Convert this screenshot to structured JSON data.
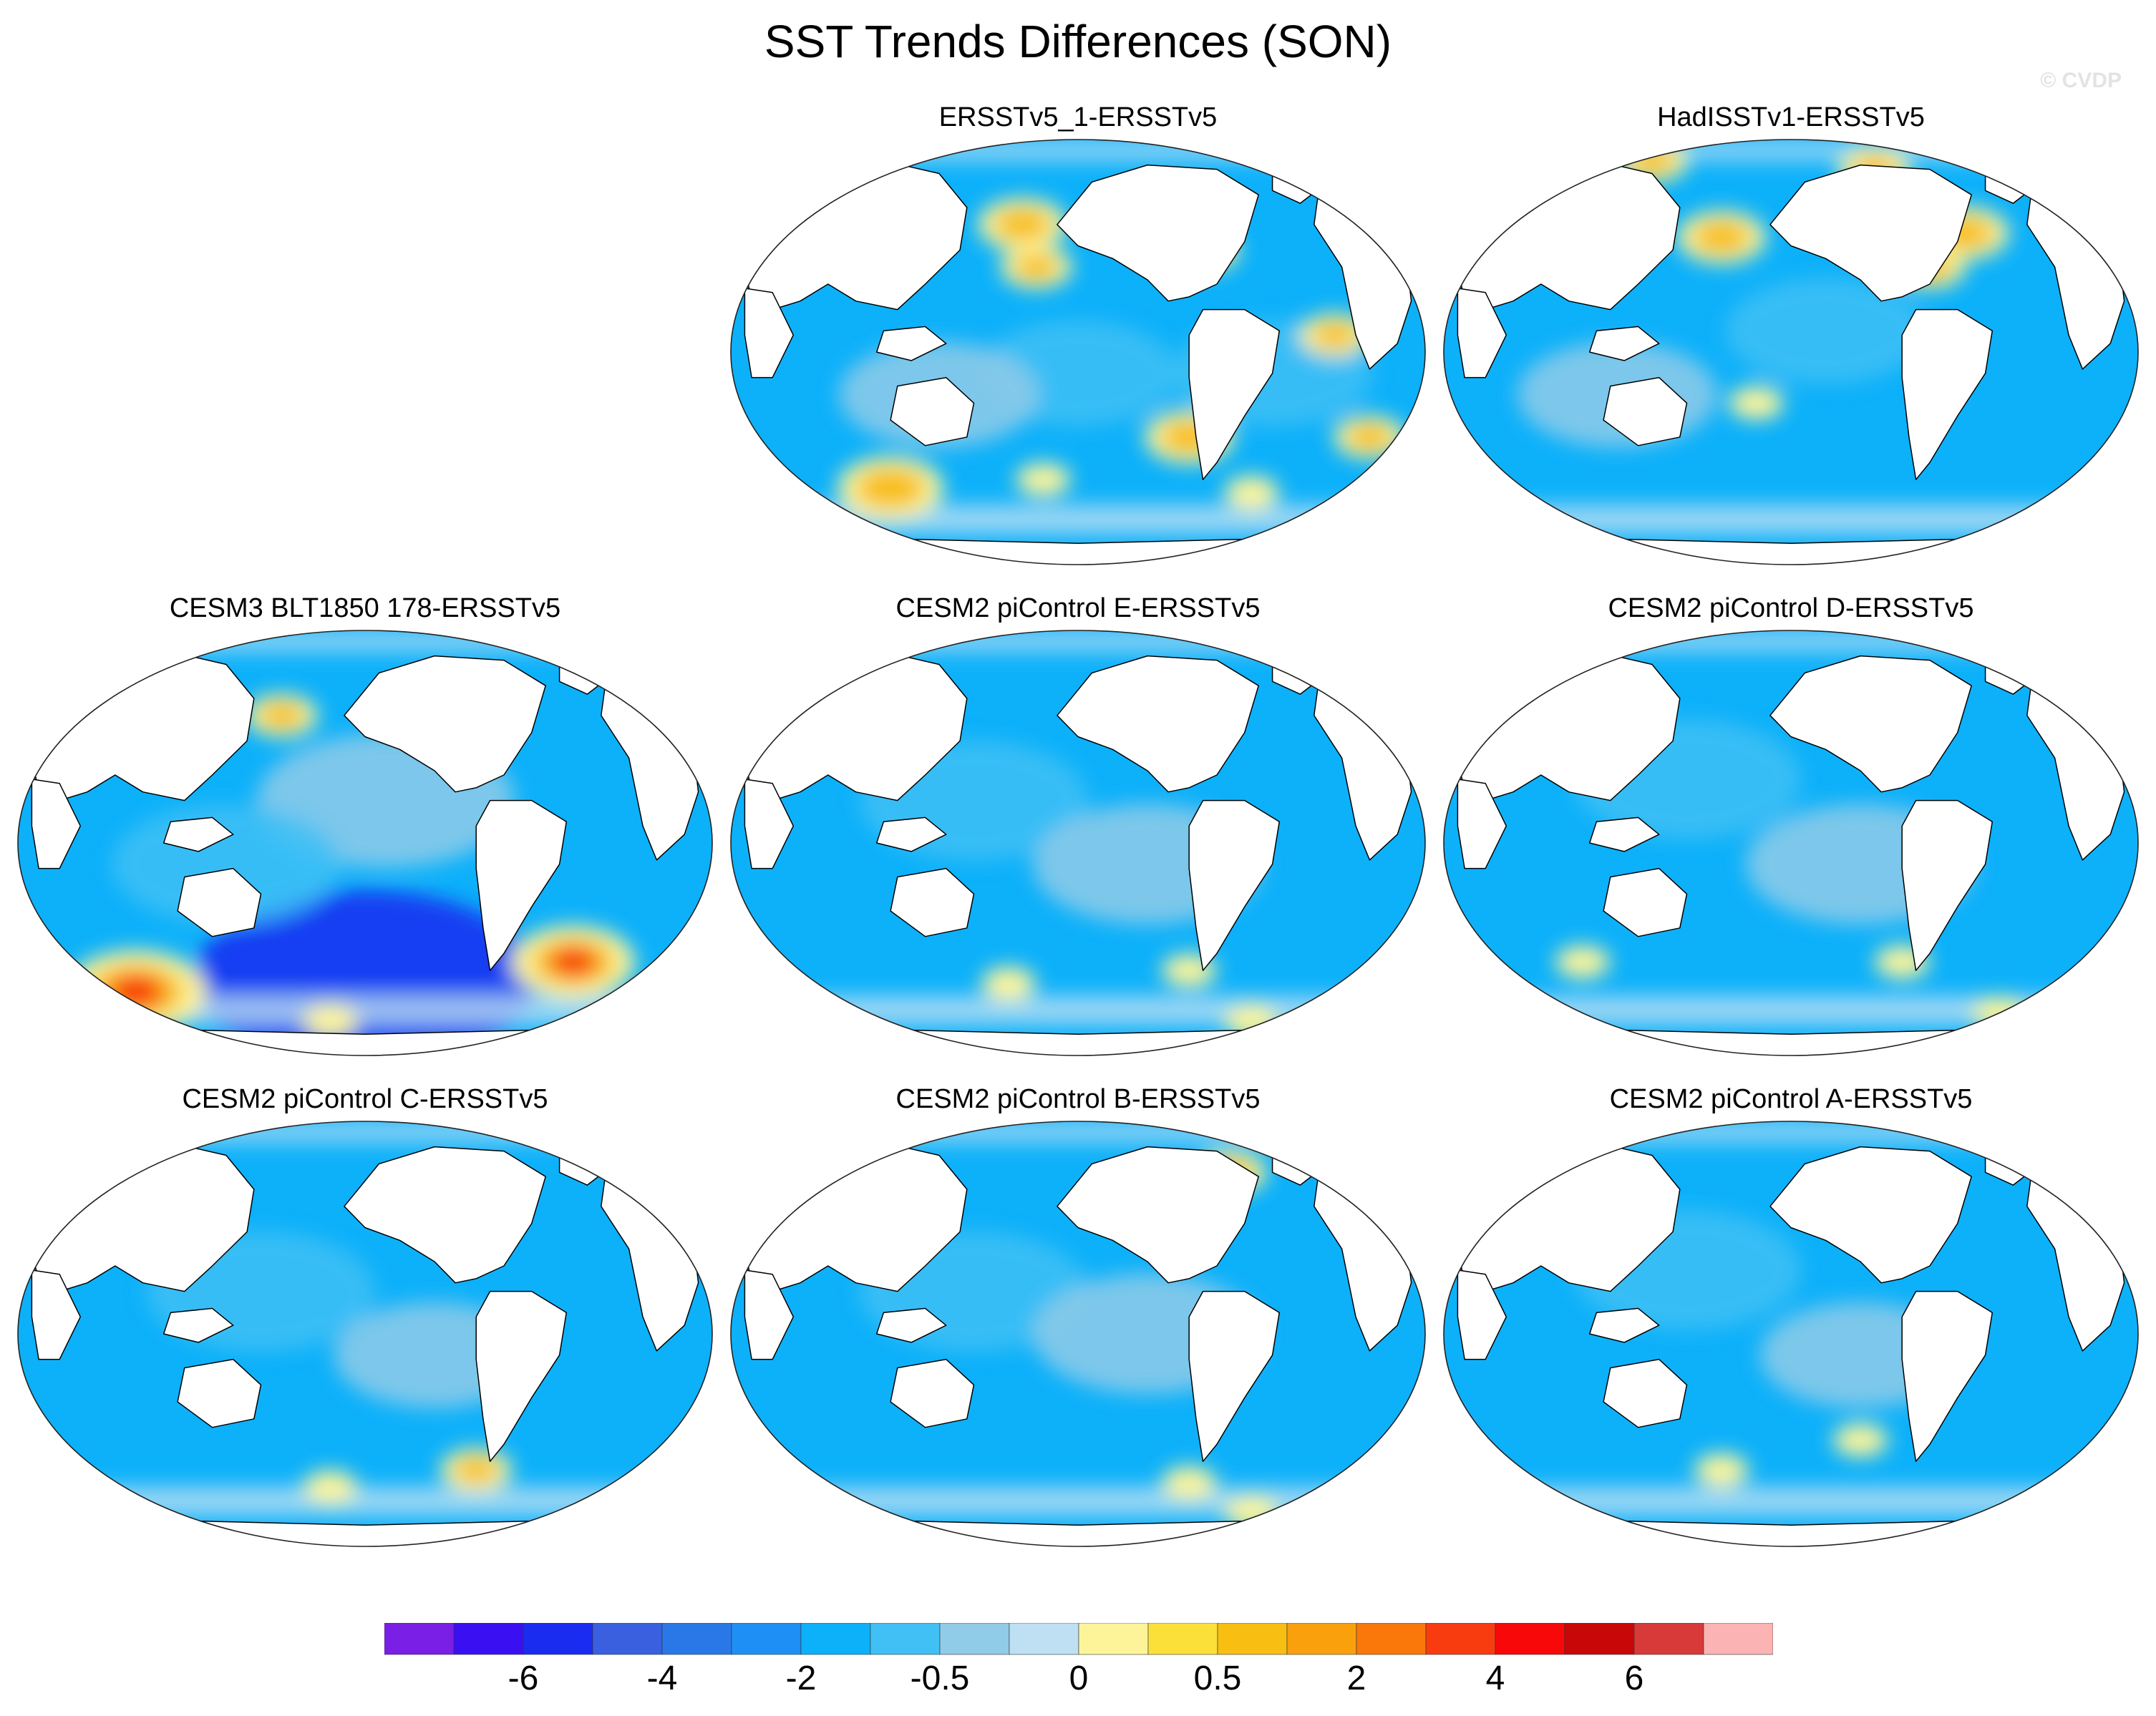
{
  "title": "SST Trends Differences (SON)",
  "watermark": "© CVDP",
  "panels": [
    {
      "title": "ERSSTv5_1-ERSSTv5",
      "warm": [
        [
          0.42,
          0.2,
          3
        ],
        [
          0.44,
          0.3,
          2
        ],
        [
          0.23,
          0.82,
          4
        ],
        [
          0.66,
          0.7,
          3
        ],
        [
          0.75,
          0.83,
          1
        ],
        [
          0.92,
          0.7,
          2
        ],
        [
          0.87,
          0.46,
          2
        ],
        [
          0.68,
          0.26,
          2
        ],
        [
          0.45,
          0.8,
          1
        ]
      ],
      "cool": [
        [
          0.5,
          0.55,
          6
        ],
        [
          0.3,
          0.6,
          6
        ],
        [
          0.78,
          0.55,
          6
        ]
      ]
    },
    {
      "title": "HadISSTv1-ERSSTv5",
      "warm": [
        [
          0.4,
          0.23,
          3
        ],
        [
          0.62,
          0.07,
          2
        ],
        [
          0.7,
          0.3,
          2
        ],
        [
          0.45,
          0.62,
          1
        ],
        [
          0.75,
          0.22,
          3
        ],
        [
          0.3,
          0.05,
          2
        ]
      ],
      "cool": [
        [
          0.55,
          0.45,
          6
        ],
        [
          0.25,
          0.6,
          6
        ]
      ]
    },
    {
      "title": "CESM3 BLT1850 178-ERSSTv5",
      "warm": [
        [
          0.8,
          0.78,
          5
        ],
        [
          0.17,
          0.85,
          6
        ],
        [
          0.38,
          0.2,
          2
        ],
        [
          0.45,
          0.92,
          1
        ]
      ],
      "cool": [
        [
          0.5,
          0.82,
          11
        ],
        [
          0.53,
          0.4,
          8
        ],
        [
          0.3,
          0.55,
          7
        ]
      ]
    },
    {
      "title": "CESM2 piControl E-ERSSTv5",
      "warm": [
        [
          0.4,
          0.83,
          1
        ],
        [
          0.66,
          0.8,
          1
        ],
        [
          0.75,
          0.92,
          1
        ]
      ],
      "cool": [
        [
          0.35,
          0.4,
          7
        ],
        [
          0.6,
          0.55,
          7
        ]
      ]
    },
    {
      "title": "CESM2 piControl D-ERSSTv5",
      "warm": [
        [
          0.2,
          0.78,
          1
        ],
        [
          0.66,
          0.78,
          1
        ],
        [
          0.8,
          0.9,
          1
        ]
      ],
      "cool": [
        [
          0.35,
          0.35,
          7
        ],
        [
          0.6,
          0.55,
          7
        ]
      ]
    },
    {
      "title": "CESM2 piControl C-ERSSTv5",
      "warm": [
        [
          0.45,
          0.86,
          1
        ],
        [
          0.66,
          0.82,
          2
        ]
      ],
      "cool": [
        [
          0.35,
          0.4,
          7
        ],
        [
          0.6,
          0.55,
          6
        ]
      ]
    },
    {
      "title": "CESM2 piControl B-ERSSTv5",
      "warm": [
        [
          0.72,
          0.12,
          2
        ],
        [
          0.66,
          0.85,
          1
        ],
        [
          0.75,
          0.92,
          1
        ]
      ],
      "cool": [
        [
          0.35,
          0.4,
          7
        ],
        [
          0.6,
          0.5,
          7
        ]
      ]
    },
    {
      "title": "CESM2 piControl A-ERSSTv5",
      "warm": [
        [
          0.4,
          0.82,
          1
        ],
        [
          0.6,
          0.75,
          1
        ]
      ],
      "cool": [
        [
          0.35,
          0.35,
          7
        ],
        [
          0.6,
          0.55,
          6
        ]
      ]
    }
  ],
  "colorbar": {
    "colors": [
      "#7a1fe6",
      "#3a10f2",
      "#1a2cf0",
      "#3a60e0",
      "#2a78e8",
      "#1e90f5",
      "#0db1fa",
      "#40c0f4",
      "#90cbe8",
      "#bfe0f2",
      "#fdf49a",
      "#fbe03a",
      "#f8be12",
      "#f9a00c",
      "#fa780a",
      "#f83c10",
      "#f80808",
      "#c80808",
      "#d83a3a",
      "#fbb3b3"
    ],
    "labels": [
      "-6",
      "-4",
      "-2",
      "-0.5",
      "0",
      "0.5",
      "2",
      "4",
      "6"
    ]
  }
}
